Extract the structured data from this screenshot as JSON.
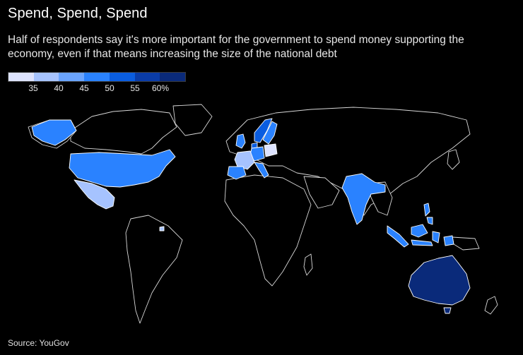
{
  "header": {
    "title": "Spend, Spend, Spend",
    "subtitle": "Half of respondents say it's more important for the government to spend money supporting the economy, even if that means increasing the size of the national debt"
  },
  "legend": {
    "bins": [
      {
        "color": "#dde3ff"
      },
      {
        "color": "#a6c3ff",
        "label": "35"
      },
      {
        "color": "#6aa4ff",
        "label": "40"
      },
      {
        "color": "#2a82ff",
        "label": "45"
      },
      {
        "color": "#0a5de0",
        "label": "50"
      },
      {
        "color": "#0a3ca8",
        "label": "55"
      },
      {
        "color": "#0a2a7a",
        "label": "60%"
      }
    ]
  },
  "map_colors": {
    "base_land": "#000000",
    "border": "#d9d9d9",
    "united-states": "#2a82ff",
    "mexico": "#a6c3ff",
    "uk": "#2a82ff",
    "france": "#a6c3ff",
    "spain": "#2a82ff",
    "germany": "#2a82ff",
    "italy": "#2a82ff",
    "poland": "#dde3ff",
    "sweden": "#2a82ff",
    "norway": "#0a5de0",
    "denmark": "#0a5de0",
    "india": "#2a82ff",
    "indonesia": "#2a82ff",
    "philippines": "#2a82ff",
    "australia": "#0a2a7a",
    "trinidad": "#a6c3ff"
  },
  "source": "Source: YouGov"
}
